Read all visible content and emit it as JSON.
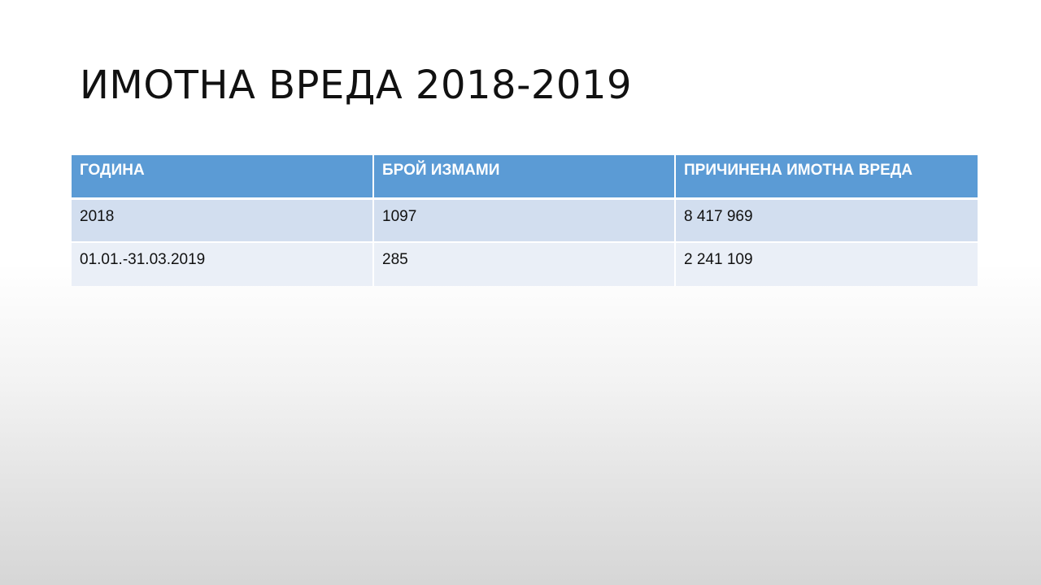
{
  "slide": {
    "title": "ИМОТНА ВРЕДА 2018-2019"
  },
  "table": {
    "headers": [
      "ГОДИНА",
      "БРОЙ ИЗМАМИ",
      "ПРИЧИНЕНА ИМОТНА ВРЕДА"
    ],
    "rows": [
      [
        "2018",
        "1097",
        "8 417 969"
      ],
      [
        "01.01.-31.03.2019",
        "285",
        "2 241 109"
      ]
    ]
  },
  "colors": {
    "header_fill": "#5b9bd5",
    "row_odd_fill": "#d2deef",
    "row_even_fill": "#eaeff7",
    "header_text": "#ffffff"
  }
}
